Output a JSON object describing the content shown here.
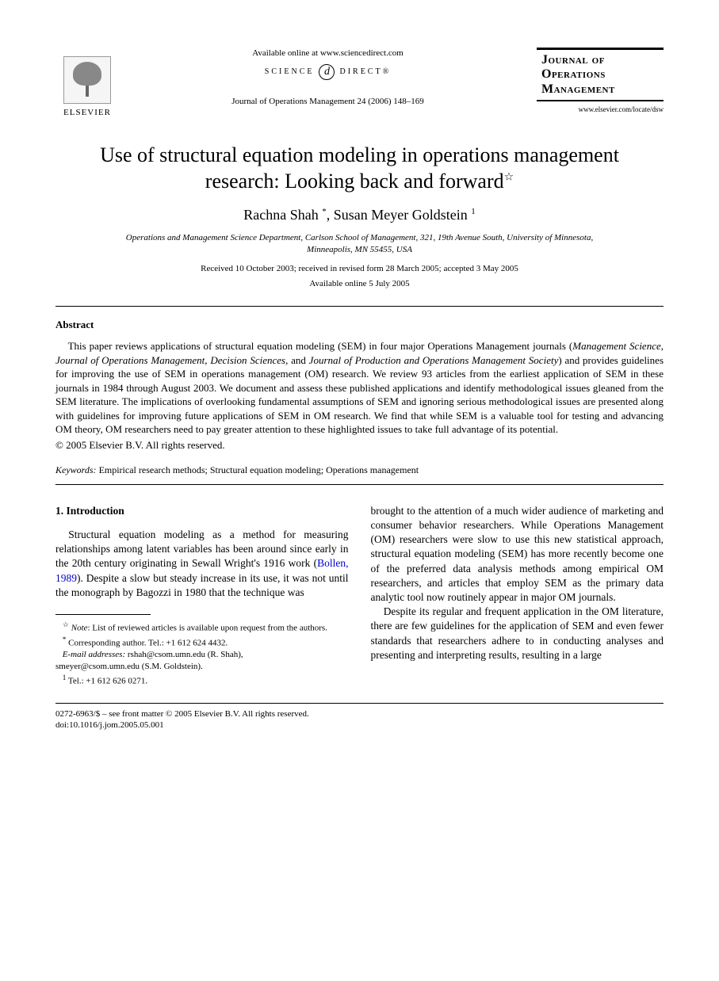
{
  "header": {
    "publisher": "ELSEVIER",
    "available_online": "Available online at www.sciencedirect.com",
    "science_label_left": "SCIENCE",
    "science_label_right": "DIRECT®",
    "journal_ref": "Journal of Operations Management 24 (2006) 148–169",
    "journal_box_line1": "Journal of",
    "journal_box_line2": "Operations",
    "journal_box_line3": "Management",
    "journal_url": "www.elsevier.com/locate/dsw"
  },
  "title": "Use of structural equation modeling in operations management research: Looking back and forward",
  "title_note_marker": "☆",
  "authors": {
    "a1_name": "Rachna Shah",
    "a1_marker": "*",
    "a2_name": "Susan Meyer Goldstein",
    "a2_marker": "1"
  },
  "affiliation": "Operations and Management Science Department, Carlson School of Management, 321, 19th Avenue South, University of Minnesota, Minneapolis, MN 55455, USA",
  "dates": {
    "line1": "Received 10 October 2003; received in revised form 28 March 2005; accepted 3 May 2005",
    "line2": "Available online 5 July 2005"
  },
  "abstract": {
    "heading": "Abstract",
    "body_html": "This paper reviews applications of structural equation modeling (SEM) in four major Operations Management journals (<em>Management Science</em>, <em>Journal of Operations Management</em>, <em>Decision Sciences</em>, and <em>Journal of Production and Operations Management Society</em>) and provides guidelines for improving the use of SEM in operations management (OM) research. We review 93 articles from the earliest application of SEM in these journals in 1984 through August 2003. We document and assess these published applications and identify methodological issues gleaned from the SEM literature. The implications of overlooking fundamental assumptions of SEM and ignoring serious methodological issues are presented along with guidelines for improving future applications of SEM in OM research. We find that while SEM is a valuable tool for testing and advancing OM theory, OM researchers need to pay greater attention to these highlighted issues to take full advantage of its potential.",
    "copyright": "© 2005 Elsevier B.V. All rights reserved."
  },
  "keywords": {
    "label": "Keywords:",
    "text": " Empirical research methods; Structural equation modeling; Operations management"
  },
  "section1": {
    "heading": "1.  Introduction",
    "col1_p1_pre": "Structural equation modeling as a method for measuring relationships among latent variables has been around since early in the 20th century originating in Sewall Wright's 1916 work (",
    "col1_p1_ref": "Bollen, 1989",
    "col1_p1_post": "). Despite a slow but steady increase in its use, it was not until the monograph by Bagozzi in 1980 that the technique was",
    "col2_p1": "brought to the attention of a much wider audience of marketing and consumer behavior researchers. While Operations Management (OM) researchers were slow to use this new statistical approach, structural equation modeling (SEM) has more recently become one of the preferred data analysis methods among empirical OM researchers, and articles that employ SEM as the primary data analytic tool now routinely appear in major OM journals.",
    "col2_p2": "Despite its regular and frequent application in the OM literature, there are few guidelines for the application of SEM and even fewer standards that researchers adhere to in conducting analyses and presenting and interpreting results, resulting in a large"
  },
  "footnotes": {
    "note_marker": "☆",
    "note_label": "Note",
    "note_text": ": List of reviewed articles is available upon request from the authors.",
    "corr_marker": "*",
    "corr_text": " Corresponding author. Tel.: +1 612 624 4432.",
    "email_label": "E-mail addresses:",
    "email1": " rshah@csom.umn.edu (R. Shah),",
    "email2": "smeyer@csom.umn.edu (S.M. Goldstein).",
    "fn1_marker": "1",
    "fn1_text": " Tel.: +1 612 626 0271."
  },
  "bottom": {
    "line1": "0272-6963/$ – see front matter © 2005 Elsevier B.V. All rights reserved.",
    "line2": "doi:10.1016/j.jom.2005.05.001"
  }
}
